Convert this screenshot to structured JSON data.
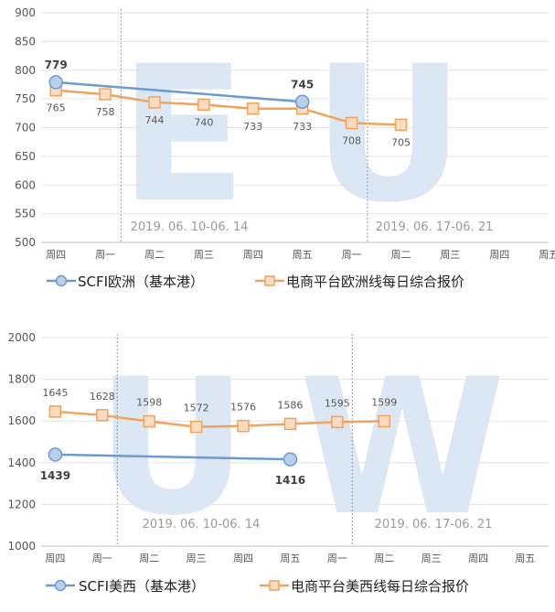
{
  "chart_data": [
    {
      "type": "line",
      "watermark": "EU",
      "watermark_color": "#dbe7f4",
      "categories": [
        "周四",
        "周一",
        "周二",
        "周三",
        "周四",
        "周五",
        "周一",
        "周二",
        "周三",
        "周四",
        "周五"
      ],
      "ylim": [
        500,
        900
      ],
      "yticks": [
        500,
        550,
        600,
        650,
        700,
        750,
        800,
        850,
        900
      ],
      "period_labels": [
        "2019. 06. 10-06. 14",
        "2019. 06. 17-06. 21"
      ],
      "series": [
        {
          "name": "SCFI欧洲（基本港）",
          "color": "#6c9bd2",
          "marker": "circle",
          "values": [
            779,
            null,
            null,
            null,
            null,
            745,
            null,
            null,
            null,
            null,
            null
          ],
          "labels": [
            "779",
            null,
            null,
            null,
            null,
            "745",
            null,
            null,
            null,
            null,
            null
          ]
        },
        {
          "name": "电商平台欧洲线每日综合报价",
          "color": "#f0a35e",
          "marker": "square",
          "values": [
            765,
            758,
            744,
            740,
            733,
            733,
            708,
            705,
            null,
            null,
            null
          ],
          "labels": [
            "765",
            "758",
            "744",
            "740",
            "733",
            "733",
            "708",
            "705",
            null,
            null,
            null
          ]
        }
      ],
      "legend": "bottom"
    },
    {
      "type": "line",
      "watermark": "UW",
      "watermark_color": "#dbe7f4",
      "categories": [
        "周四",
        "周一",
        "周二",
        "周三",
        "周四",
        "周五",
        "周一",
        "周二",
        "周三",
        "周四",
        "周五"
      ],
      "ylim": [
        1000,
        2000
      ],
      "yticks": [
        1000,
        1200,
        1400,
        1600,
        1800,
        2000
      ],
      "period_labels": [
        "2019. 06. 10-06. 14",
        "2019. 06. 17-06. 21"
      ],
      "series": [
        {
          "name": "SCFI美西（基本港）",
          "color": "#6c9bd2",
          "marker": "circle",
          "values": [
            1439,
            null,
            null,
            null,
            null,
            1416,
            null,
            null,
            null,
            null,
            null
          ],
          "labels": [
            "1439",
            null,
            null,
            null,
            null,
            "1416",
            null,
            null,
            null,
            null,
            null
          ]
        },
        {
          "name": "电商平台美西线每日综合报价",
          "color": "#f0a35e",
          "marker": "square",
          "values": [
            1645,
            1628,
            1598,
            1572,
            1576,
            1586,
            1595,
            1599,
            null,
            null,
            null
          ],
          "labels": [
            "1645",
            "1628",
            "1598",
            "1572",
            "1576",
            "1586",
            "1595",
            "1599",
            null,
            null,
            null
          ]
        }
      ],
      "legend": "bottom"
    }
  ]
}
